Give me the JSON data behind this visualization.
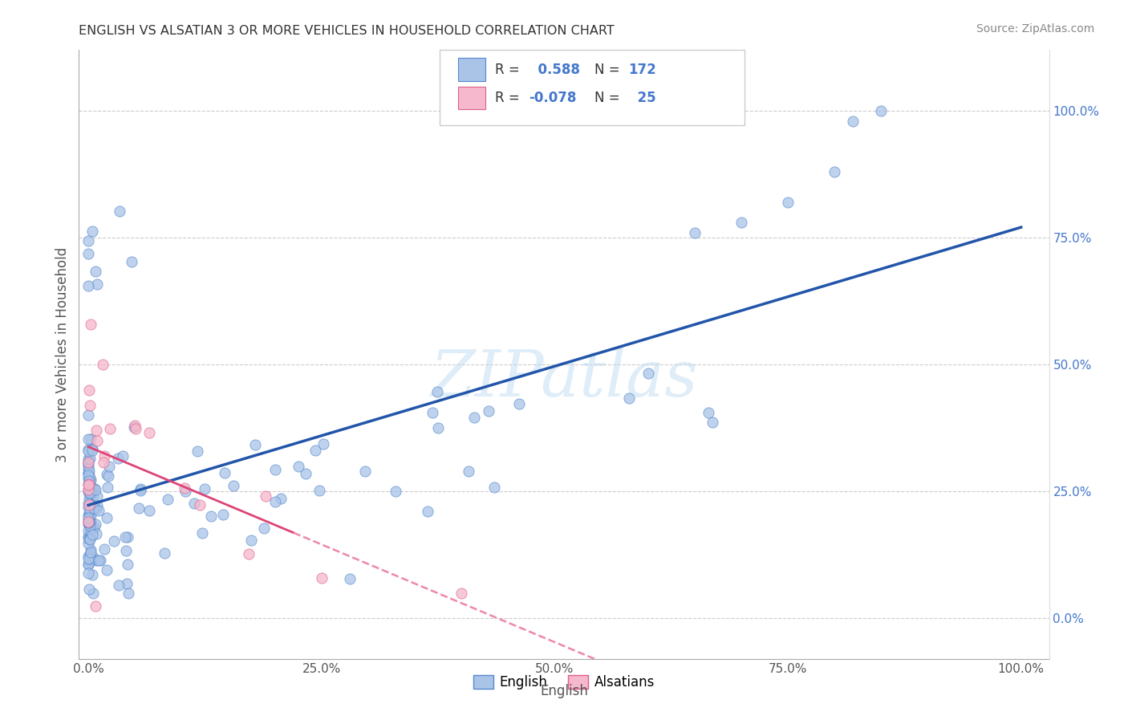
{
  "title": "ENGLISH VS ALSATIAN 3 OR MORE VEHICLES IN HOUSEHOLD CORRELATION CHART",
  "source_text": "Source: ZipAtlas.com",
  "xlabel": "English",
  "ylabel": "3 or more Vehicles in Household",
  "watermark": "ZIPatlas",
  "x_ticks": [
    0.0,
    0.25,
    0.5,
    0.75,
    1.0
  ],
  "x_tick_labels": [
    "0.0%",
    "25.0%",
    "50.0%",
    "75.0%",
    "100.0%"
  ],
  "y_ticks": [
    0.0,
    0.25,
    0.5,
    0.75,
    1.0
  ],
  "y_tick_labels": [
    "0.0%",
    "25.0%",
    "50.0%",
    "75.0%",
    "100.0%"
  ],
  "english_R": 0.588,
  "english_N": 172,
  "alsatian_R": -0.078,
  "alsatian_N": 25,
  "english_color": "#aac4e8",
  "english_edge_color": "#5588cc",
  "alsatian_color": "#f5b8cc",
  "alsatian_edge_color": "#e06088",
  "blue_line_color": "#2255aa",
  "pink_solid_color": "#dd4477",
  "pink_dash_color": "#ee88aa",
  "title_color": "#333333",
  "right_axis_color": "#4477cc",
  "grid_color": "#cccccc",
  "legend_border_color": "#cccccc",
  "legend_text_color": "#333333",
  "legend_value_color": "#4477cc"
}
